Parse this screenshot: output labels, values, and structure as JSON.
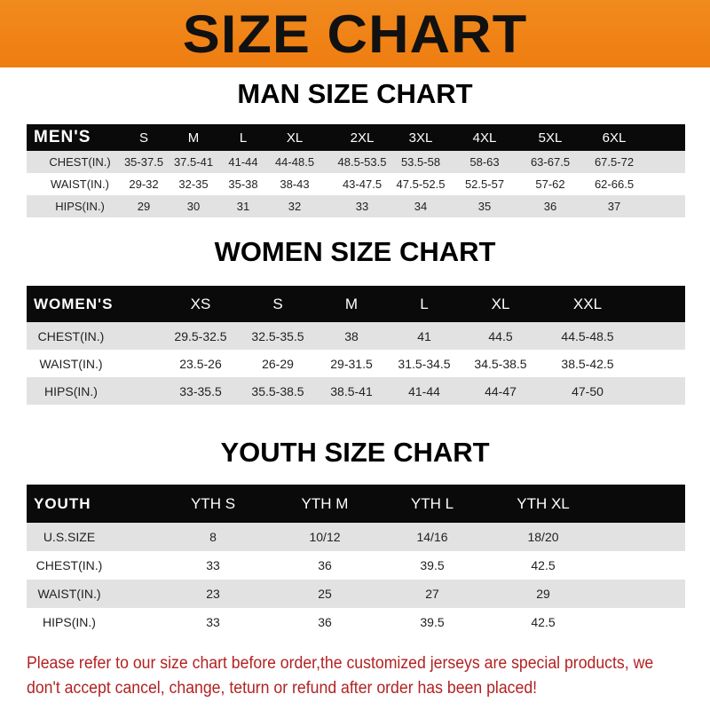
{
  "title": "SIZE CHART",
  "colors": {
    "banner": "#f08a1e",
    "header_bg": "#0a0a0a",
    "row_shade": "#e2e2e2",
    "notice": "#b22222"
  },
  "men": {
    "title": "MAN SIZE CHART",
    "headers": [
      "MEN'S",
      "S",
      "M",
      "L",
      "XL",
      "2XL",
      "3XL",
      "4XL",
      "5XL",
      "6XL"
    ],
    "rows": [
      [
        "CHEST(IN.)",
        "35-37.5",
        "37.5-41",
        "41-44",
        "44-48.5",
        "48.5-53.5",
        "53.5-58",
        "58-63",
        "63-67.5",
        "67.5-72"
      ],
      [
        "WAIST(IN.)",
        "29-32",
        "32-35",
        "35-38",
        "38-43",
        "43-47.5",
        "47.5-52.5",
        "52.5-57",
        "57-62",
        "62-66.5"
      ],
      [
        "HIPS(IN.)",
        "29",
        "30",
        "31",
        "32",
        "33",
        "34",
        "35",
        "36",
        "37"
      ]
    ]
  },
  "women": {
    "title": "WOMEN SIZE CHART",
    "headers": [
      "WOMEN'S",
      "XS",
      "S",
      "M",
      "L",
      "XL",
      "XXL"
    ],
    "rows": [
      [
        "CHEST(IN.)",
        "29.5-32.5",
        "32.5-35.5",
        "38",
        "41",
        "44.5",
        "44.5-48.5"
      ],
      [
        "WAIST(IN.)",
        "23.5-26",
        "26-29",
        "29-31.5",
        "31.5-34.5",
        "34.5-38.5",
        "38.5-42.5"
      ],
      [
        "HIPS(IN.)",
        "33-35.5",
        "35.5-38.5",
        "38.5-41",
        "41-44",
        "44-47",
        "47-50"
      ]
    ]
  },
  "youth": {
    "title": "YOUTH SIZE CHART",
    "headers": [
      "YOUTH",
      "YTH S",
      "YTH M",
      "YTH L",
      "YTH XL"
    ],
    "rows": [
      [
        "U.S.SIZE",
        "8",
        "10/12",
        "14/16",
        "18/20"
      ],
      [
        "CHEST(IN.)",
        "33",
        "36",
        "39.5",
        "42.5"
      ],
      [
        "WAIST(IN.)",
        "23",
        "25",
        "27",
        "29"
      ],
      [
        "HIPS(IN.)",
        "33",
        "36",
        "39.5",
        "42.5"
      ]
    ]
  },
  "notice": "Please refer to our size chart before order,the customized jerseys are special products, we don't accept cancel, change, teturn or refund after order has been placed!"
}
